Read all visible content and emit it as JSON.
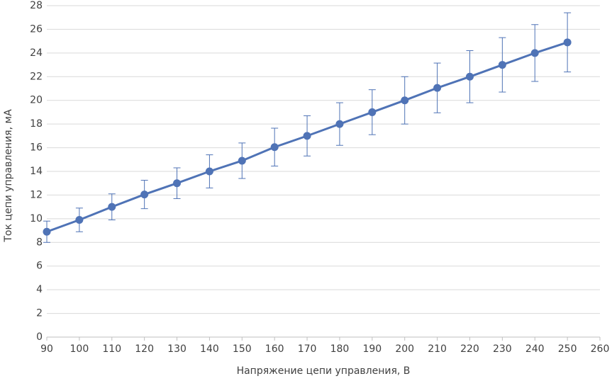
{
  "chart_data": {
    "type": "line",
    "x_label": "Напряжение цепи управления, В",
    "y_label": "Ток цепи управления, мА",
    "x": [
      90,
      100,
      110,
      120,
      130,
      140,
      150,
      160,
      170,
      180,
      190,
      200,
      210,
      220,
      230,
      240,
      250
    ],
    "values": [
      8.9,
      9.9,
      11,
      12.05,
      13,
      14,
      14.9,
      16.05,
      17,
      18,
      19,
      20,
      21.05,
      22,
      23,
      24,
      24.9
    ],
    "errors": [
      0.9,
      1.0,
      1.1,
      1.2,
      1.3,
      1.4,
      1.5,
      1.6,
      1.7,
      1.8,
      1.9,
      2.0,
      2.1,
      2.2,
      2.3,
      2.4,
      2.5
    ],
    "color": "#4f73b6",
    "xlim": [
      90,
      260
    ],
    "xticks": [
      90,
      100,
      110,
      120,
      130,
      140,
      150,
      160,
      170,
      180,
      190,
      200,
      210,
      220,
      230,
      240,
      250,
      260
    ],
    "ylim": [
      0,
      28
    ],
    "yticks": [
      0,
      2,
      4,
      6,
      8,
      10,
      12,
      14,
      16,
      18,
      20,
      22,
      24,
      26,
      28
    ],
    "grid": true
  }
}
